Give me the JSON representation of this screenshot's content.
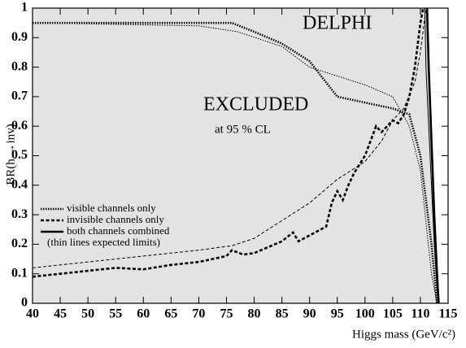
{
  "chart_data": {
    "type": "line",
    "y_label": "BR(h →inv)",
    "x_label": "Higgs mass (GeV/c²)",
    "experiment_label": "DELPHI",
    "region_label": "EXCLUDED",
    "region_sublabel": "at 95 % CL",
    "legend_note": "(thin lines expected limits)",
    "xlim": [
      40,
      115
    ],
    "ylim": [
      0,
      1
    ],
    "xticks": [
      40,
      45,
      50,
      55,
      60,
      65,
      70,
      75,
      80,
      85,
      90,
      95,
      100,
      105,
      110,
      115
    ],
    "yticks": [
      0,
      0.1,
      0.2,
      0.3,
      0.4,
      0.5,
      0.6,
      0.7,
      0.8,
      0.9,
      1
    ],
    "fill_color": "#e3e3e3",
    "series": [
      {
        "name": "visible channels only",
        "color": "#000000",
        "style": "dotted",
        "x": [
          40,
          76,
          80,
          85,
          90,
          95,
          100,
          105,
          108,
          110,
          112,
          113
        ],
        "values": [
          0.95,
          0.95,
          0.92,
          0.88,
          0.82,
          0.7,
          0.68,
          0.66,
          0.64,
          0.5,
          0.2,
          0
        ],
        "expected_x": [
          40,
          70,
          77,
          85,
          90,
          95,
          100,
          105,
          108,
          110,
          112,
          113
        ],
        "expected": [
          0.95,
          0.94,
          0.92,
          0.87,
          0.8,
          0.77,
          0.74,
          0.7,
          0.6,
          0.45,
          0.1,
          0
        ]
      },
      {
        "name": "invisible channels only",
        "color": "#000000",
        "style": "dashed",
        "x": [
          40,
          45,
          50,
          55,
          60,
          65,
          70,
          75,
          76,
          78,
          80,
          85,
          87,
          88,
          90,
          93,
          94,
          95,
          96,
          97,
          98,
          100,
          102,
          103,
          105,
          106,
          107,
          108,
          109,
          110,
          110.5
        ],
        "values": [
          0.09,
          0.1,
          0.11,
          0.12,
          0.115,
          0.13,
          0.14,
          0.16,
          0.18,
          0.165,
          0.17,
          0.21,
          0.24,
          0.21,
          0.23,
          0.26,
          0.34,
          0.38,
          0.35,
          0.4,
          0.44,
          0.5,
          0.6,
          0.58,
          0.62,
          0.61,
          0.64,
          0.7,
          0.8,
          0.95,
          1
        ],
        "expected_x": [
          40,
          50,
          60,
          70,
          76,
          80,
          85,
          90,
          95,
          100,
          103,
          105,
          107,
          109,
          110,
          111
        ],
        "expected": [
          0.12,
          0.14,
          0.16,
          0.18,
          0.195,
          0.22,
          0.28,
          0.34,
          0.42,
          0.48,
          0.55,
          0.62,
          0.66,
          0.75,
          0.85,
          1
        ]
      },
      {
        "name": "both channels combined",
        "color": "#000000",
        "style": "solid",
        "x": [
          111.2,
          111.5,
          112,
          112.5,
          113,
          113.3
        ],
        "values": [
          1,
          0.8,
          0.55,
          0.3,
          0.1,
          0
        ],
        "expected_x": [
          110.8,
          111,
          111.5,
          112,
          112.5,
          113,
          113.2
        ],
        "expected": [
          1,
          0.8,
          0.6,
          0.4,
          0.2,
          0.05,
          0
        ]
      }
    ]
  }
}
